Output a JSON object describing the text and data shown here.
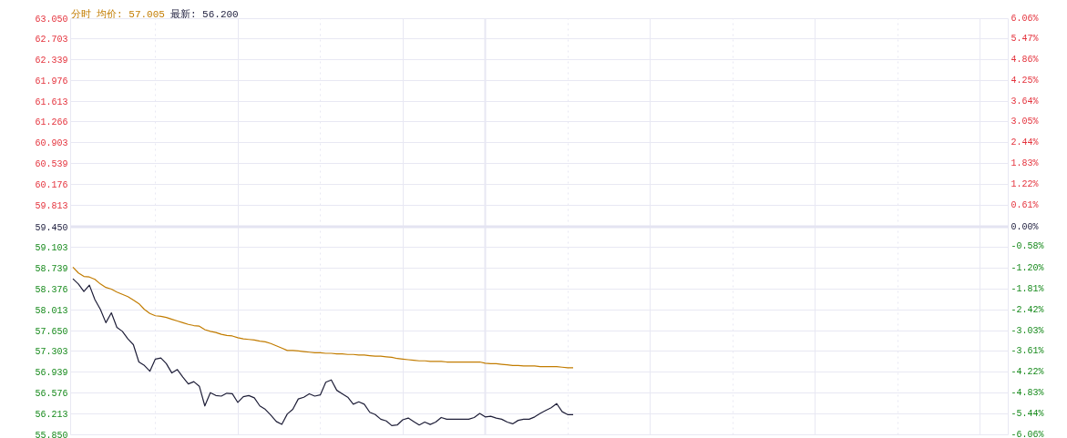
{
  "chart_data": {
    "type": "line",
    "title": "分时 均价: 57.005",
    "subtitle": "最新: 56.200",
    "categories": [
      null,
      null,
      null,
      null,
      null,
      null,
      null,
      null,
      null,
      null,
      null,
      null,
      null,
      null,
      null,
      null,
      null,
      null,
      null,
      null,
      null,
      null,
      null,
      null,
      null,
      null,
      null,
      null,
      null,
      null,
      null,
      null,
      null,
      null,
      null,
      null,
      null,
      null,
      null,
      null,
      null,
      null,
      null,
      null,
      null,
      null,
      null,
      null,
      null,
      null,
      null,
      null,
      null,
      null,
      null,
      null,
      null,
      null,
      null,
      null,
      null,
      null,
      null,
      null,
      null,
      null,
      null,
      null,
      null,
      null,
      null,
      null,
      null,
      null,
      null,
      null,
      null,
      null,
      null,
      null,
      null,
      null,
      null,
      null,
      null,
      null,
      null,
      null,
      null,
      null,
      null,
      null,
      null,
      null,
      null,
      null,
      null,
      null,
      null,
      null,
      null,
      null,
      null,
      null,
      null,
      null,
      null,
      null,
      null,
      null,
      null,
      null,
      null,
      null,
      null,
      null,
      null,
      null,
      null,
      null,
      null,
      null,
      null,
      null,
      null,
      null,
      null,
      null,
      null,
      null,
      null,
      null,
      null,
      null,
      null,
      null,
      null,
      null,
      null,
      null,
      null,
      null,
      null,
      null,
      null,
      null,
      null,
      null,
      null,
      null,
      null,
      null,
      null,
      null,
      null,
      null,
      null,
      null,
      null,
      null,
      null,
      null,
      null,
      null,
      null,
      null
    ],
    "series": [
      {
        "color": "#1e1e38",
        "values": [
          58.55,
          58.46,
          58.33,
          58.44,
          58.19,
          58.02,
          57.79,
          57.96,
          57.71,
          57.64,
          57.51,
          57.41,
          57.11,
          57.05,
          56.95,
          57.16,
          57.18,
          57.08,
          56.92,
          56.98,
          56.85,
          56.73,
          56.77,
          56.69,
          56.35,
          56.58,
          56.53,
          56.52,
          56.57,
          56.56,
          56.41,
          56.51,
          56.53,
          56.49,
          56.35,
          56.29,
          56.19,
          56.08,
          56.03,
          56.21,
          56.29,
          56.47,
          56.5,
          56.56,
          56.52,
          56.54,
          56.76,
          56.8,
          56.62,
          56.56,
          56.5,
          56.38,
          56.42,
          56.38,
          56.24,
          56.2,
          56.12,
          56.09,
          56.01,
          56.02,
          56.11,
          56.14,
          56.08,
          56.02,
          56.07,
          56.03,
          56.07,
          56.15,
          56.12,
          56.12,
          56.12,
          56.12,
          56.12,
          56.15,
          56.22,
          56.16,
          56.17,
          56.14,
          56.12,
          56.07,
          56.04,
          56.1,
          56.12,
          56.12,
          56.16,
          56.22,
          56.27,
          56.32,
          56.39,
          56.25,
          56.2,
          56.2,
          null,
          null,
          null,
          null,
          null,
          null,
          null,
          null,
          null,
          null,
          null,
          null,
          null,
          null,
          null,
          null,
          null,
          null,
          null,
          null,
          null,
          null,
          null,
          null,
          null,
          null,
          null,
          null,
          null,
          null,
          null,
          null,
          null,
          null,
          null,
          null,
          null,
          null,
          null,
          null,
          null,
          null,
          null,
          null,
          null,
          null,
          null,
          null,
          null,
          null,
          null,
          null,
          null,
          null,
          null,
          null,
          null,
          null,
          null,
          null,
          null,
          null,
          null,
          null,
          null,
          null,
          null,
          null,
          null,
          null,
          null,
          null,
          null,
          null
        ]
      },
      {
        "color": "#c27c00",
        "values": [
          58.75,
          58.65,
          58.59,
          58.58,
          58.54,
          58.46,
          58.4,
          58.37,
          58.32,
          58.28,
          58.24,
          58.18,
          58.12,
          58.02,
          57.95,
          57.91,
          57.9,
          57.88,
          57.85,
          57.82,
          57.79,
          57.76,
          57.74,
          57.73,
          57.67,
          57.64,
          57.62,
          57.59,
          57.57,
          57.56,
          57.53,
          57.51,
          57.5,
          57.49,
          57.47,
          57.46,
          57.43,
          57.39,
          57.35,
          57.31,
          57.31,
          57.3,
          57.29,
          57.28,
          57.27,
          57.27,
          57.26,
          57.26,
          57.25,
          57.25,
          57.24,
          57.24,
          57.23,
          57.23,
          57.22,
          57.21,
          57.21,
          57.2,
          57.19,
          57.17,
          57.16,
          57.15,
          57.14,
          57.13,
          57.13,
          57.12,
          57.12,
          57.12,
          57.11,
          57.11,
          57.11,
          57.11,
          57.11,
          57.11,
          57.11,
          57.09,
          57.08,
          57.08,
          57.07,
          57.06,
          57.05,
          57.05,
          57.04,
          57.04,
          57.04,
          57.03,
          57.03,
          57.03,
          57.03,
          57.02,
          57.01,
          57.01,
          null,
          null,
          null,
          null,
          null,
          null,
          null,
          null,
          null,
          null,
          null,
          null,
          null,
          null,
          null,
          null,
          null,
          null,
          null,
          null,
          null,
          null,
          null,
          null,
          null,
          null,
          null,
          null,
          null,
          null,
          null,
          null,
          null,
          null,
          null,
          null,
          null,
          null,
          null,
          null,
          null,
          null,
          null,
          null,
          null,
          null,
          null,
          null,
          null,
          null,
          null,
          null,
          null,
          null,
          null,
          null,
          null,
          null,
          null,
          null,
          null,
          null,
          null,
          null,
          null,
          null,
          null,
          null,
          null,
          null,
          null,
          null,
          null,
          null
        ]
      }
    ],
    "ylim": [
      55.85,
      63.05
    ],
    "yticks": [
      {
        "value": 63.05,
        "label": "63.050"
      },
      {
        "value": 62.703,
        "label": "62.703"
      },
      {
        "value": 62.339,
        "label": "62.339"
      },
      {
        "value": 61.976,
        "label": "61.976"
      },
      {
        "value": 61.613,
        "label": "61.613"
      },
      {
        "value": 61.266,
        "label": "61.266"
      },
      {
        "value": 60.903,
        "label": "60.903"
      },
      {
        "value": 60.539,
        "label": "60.539"
      },
      {
        "value": 60.176,
        "label": "60.176"
      },
      {
        "value": 59.813,
        "label": "59.813"
      },
      {
        "value": 59.45,
        "label": "59.450"
      },
      {
        "value": 59.103,
        "label": "59.103"
      },
      {
        "value": 58.739,
        "label": "58.739"
      },
      {
        "value": 58.376,
        "label": "58.376"
      },
      {
        "value": 58.013,
        "label": "58.013"
      },
      {
        "value": 57.65,
        "label": "57.650"
      },
      {
        "value": 57.303,
        "label": "57.303"
      },
      {
        "value": 56.939,
        "label": "56.939"
      },
      {
        "value": 56.576,
        "label": "56.576"
      },
      {
        "value": 56.213,
        "label": "56.213"
      },
      {
        "value": 55.85,
        "label": "55.850"
      }
    ],
    "y2lim": [
      -6.06,
      6.06
    ],
    "y2ticks": [
      {
        "value": 6.06,
        "label": "6.06%"
      },
      {
        "value": 5.47,
        "label": "5.47%"
      },
      {
        "value": 4.86,
        "label": "4.86%"
      },
      {
        "value": 4.25,
        "label": "4.25%"
      },
      {
        "value": 3.64,
        "label": "3.64%"
      },
      {
        "value": 3.05,
        "label": "3.05%"
      },
      {
        "value": 2.44,
        "label": "2.44%"
      },
      {
        "value": 1.83,
        "label": "1.83%"
      },
      {
        "value": 1.22,
        "label": "1.22%"
      },
      {
        "value": 0.61,
        "label": "0.61%"
      },
      {
        "value": 0,
        "label": "0.00%"
      },
      {
        "value": -0.58,
        "label": "-0.58%"
      },
      {
        "value": -1.2,
        "label": "-1.20%"
      },
      {
        "value": -1.81,
        "label": "-1.81%"
      },
      {
        "value": -2.42,
        "label": "-2.42%"
      },
      {
        "value": -3.03,
        "label": "-3.03%"
      },
      {
        "value": -3.61,
        "label": "-3.61%"
      },
      {
        "value": -4.22,
        "label": "-4.22%"
      },
      {
        "value": -4.83,
        "label": "-4.83%"
      },
      {
        "value": -5.44,
        "label": "-5.44%"
      },
      {
        "value": -6.06,
        "label": "-6.06%"
      }
    ],
    "ref_lines": [
      {
        "axis": "y",
        "value": 59.45,
        "color": "#e4e4f2"
      }
    ],
    "grid": true,
    "tick_labels": "y"
  }
}
